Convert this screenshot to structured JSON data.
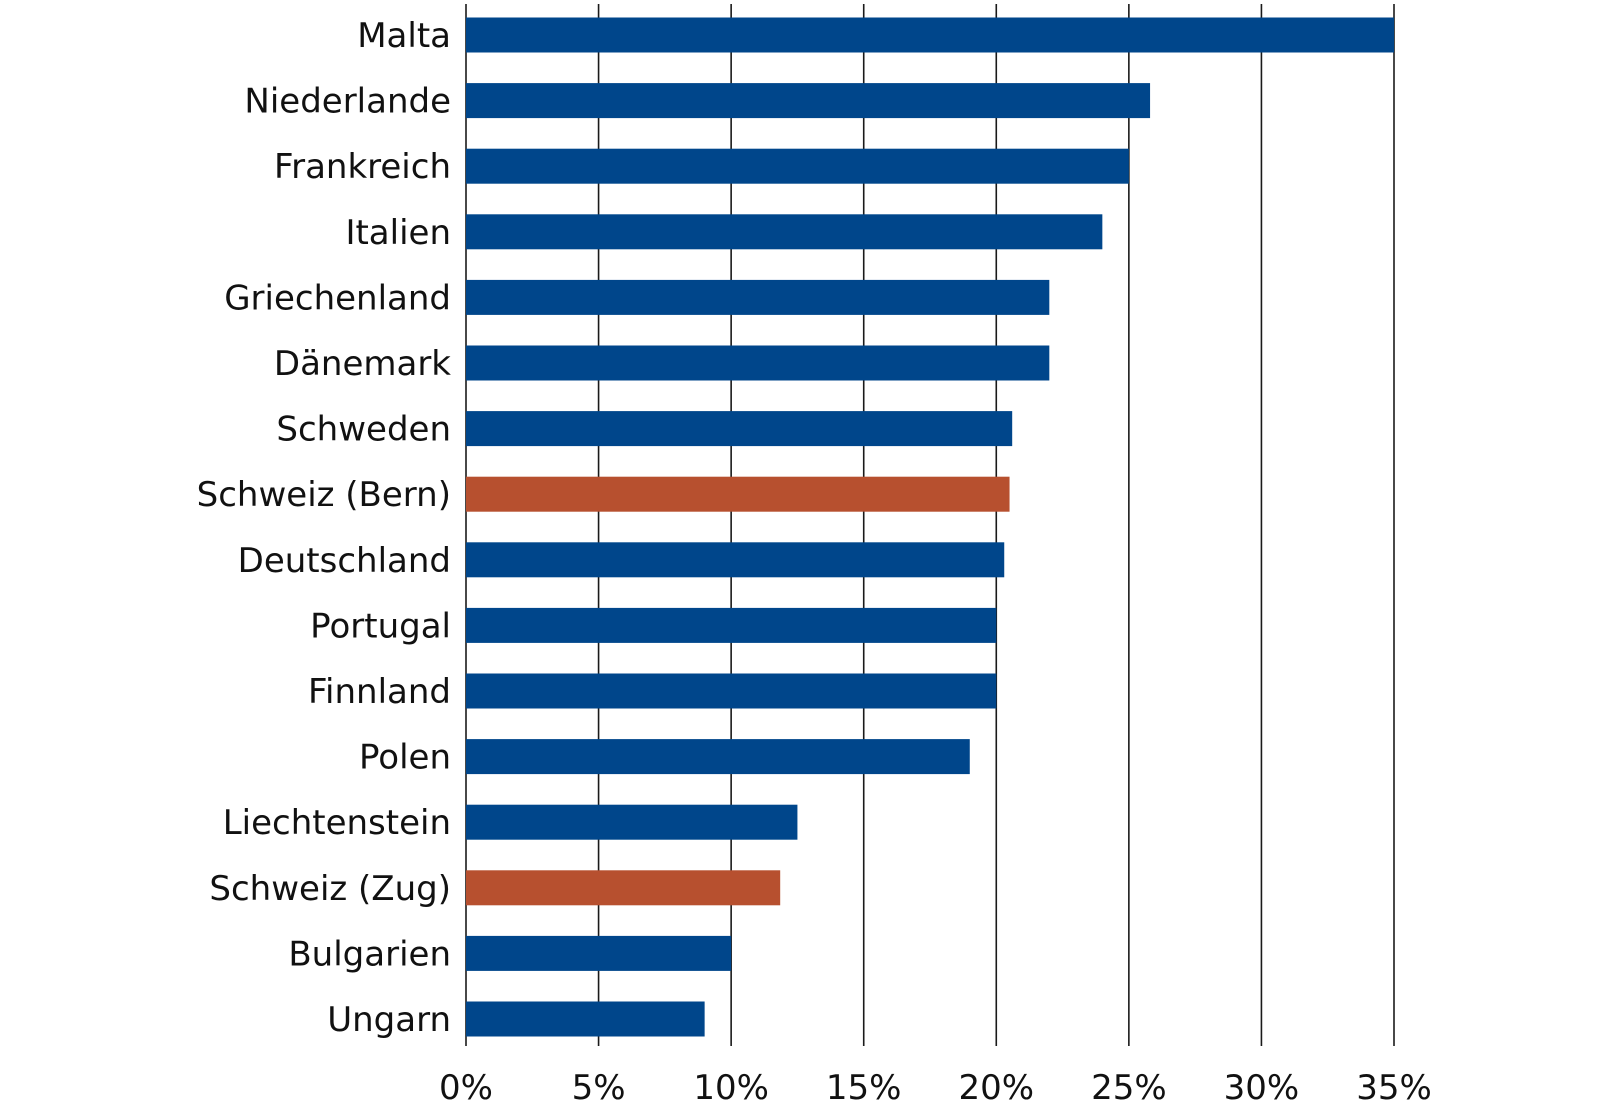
{
  "chart_data": {
    "type": "bar",
    "orientation": "horizontal",
    "title": "",
    "xlabel": "",
    "ylabel": "",
    "xlim": [
      0,
      35
    ],
    "x_ticks": [
      0,
      5,
      10,
      15,
      20,
      25,
      30,
      35
    ],
    "x_tick_labels": [
      "0%",
      "5%",
      "10%",
      "15%",
      "20%",
      "25%",
      "30%",
      "35%"
    ],
    "grid": "vertical",
    "legend": "none",
    "categories": [
      "Malta",
      "Niederlande",
      "Frankreich",
      "Italien",
      "Griechenland",
      "Dänemark",
      "Schweden",
      "Schweiz (Bern)",
      "Deutschland",
      "Portugal",
      "Finnland",
      "Polen",
      "Liechtenstein",
      "Schweiz (Zug)",
      "Bulgarien",
      "Ungarn"
    ],
    "values": [
      35,
      25.8,
      25,
      24,
      22,
      22,
      20.6,
      20.5,
      20.3,
      20,
      20,
      19,
      12.5,
      11.85,
      10,
      9
    ],
    "highlight": [
      false,
      false,
      false,
      false,
      false,
      false,
      false,
      true,
      false,
      false,
      false,
      false,
      false,
      true,
      false,
      false
    ]
  },
  "colors": {
    "bar": "#00468B",
    "highlight": "#B7502F",
    "grid": "#1a1a1a",
    "text": "#111111"
  }
}
